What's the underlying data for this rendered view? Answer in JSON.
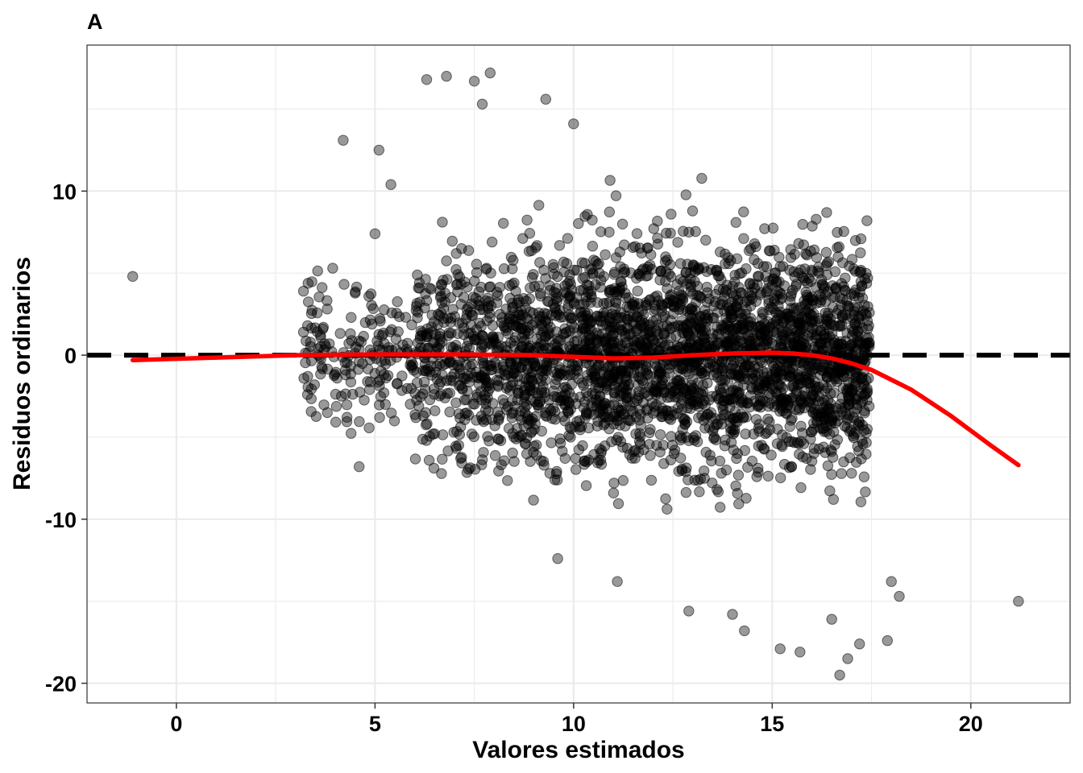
{
  "chart_data": {
    "type": "scatter",
    "tag": "A",
    "title": "",
    "xlabel": "Valores estimados",
    "ylabel": "Residuos ordinarios",
    "xlim": [
      -2.25,
      22.5
    ],
    "ylim": [
      -21.2,
      18.9
    ],
    "x_ticks": [
      0,
      5,
      10,
      15,
      20
    ],
    "x_tick_labels": [
      "0",
      "5",
      "10",
      "15",
      "20"
    ],
    "y_ticks": [
      -20,
      -10,
      0,
      10
    ],
    "y_tick_labels": [
      "-20",
      "-10",
      "0",
      "10"
    ],
    "grid": true,
    "legend": "none",
    "colors": {
      "points": "#000000",
      "point_opacity": 0.4,
      "smooth_line": "#ff0000",
      "reference_line": "#000000",
      "grid": "#ebebeb",
      "panel_border": "#333333"
    },
    "reference_line": {
      "y": 0,
      "style": "dashed"
    },
    "highlighted_points": [
      {
        "x": -1.1,
        "y": 4.8
      },
      {
        "x": 21.2,
        "y": -15.0
      },
      {
        "x": 17.9,
        "y": -17.4
      },
      {
        "x": 18.2,
        "y": -14.7
      },
      {
        "x": 18.0,
        "y": -13.8
      },
      {
        "x": 16.7,
        "y": -19.5
      },
      {
        "x": 16.9,
        "y": -18.5
      },
      {
        "x": 4.2,
        "y": 13.1
      },
      {
        "x": 3.2,
        "y": 3.9
      },
      {
        "x": 3.3,
        "y": -2.4
      },
      {
        "x": 3.2,
        "y": 1.4
      },
      {
        "x": 3.7,
        "y": 1.7
      },
      {
        "x": 3.8,
        "y": -3.5
      },
      {
        "x": 4.4,
        "y": 2.3
      },
      {
        "x": 4.6,
        "y": -6.8
      },
      {
        "x": 5.1,
        "y": 12.5
      },
      {
        "x": 5.0,
        "y": 7.4
      },
      {
        "x": 5.4,
        "y": 10.4
      },
      {
        "x": 6.3,
        "y": 16.8
      },
      {
        "x": 6.8,
        "y": 17.0
      },
      {
        "x": 7.5,
        "y": 16.7
      },
      {
        "x": 7.9,
        "y": 17.2
      },
      {
        "x": 7.7,
        "y": 15.3
      },
      {
        "x": 9.3,
        "y": 15.6
      },
      {
        "x": 10.0,
        "y": 14.1
      },
      {
        "x": 9.6,
        "y": -12.4
      },
      {
        "x": 11.1,
        "y": -13.8
      },
      {
        "x": 12.9,
        "y": -15.6
      },
      {
        "x": 14.3,
        "y": -16.8
      },
      {
        "x": 15.2,
        "y": -17.9
      },
      {
        "x": 15.7,
        "y": -18.1
      },
      {
        "x": 14.0,
        "y": -15.8
      },
      {
        "x": 16.5,
        "y": -16.1
      },
      {
        "x": 17.2,
        "y": -17.6
      }
    ],
    "cloud_description_bands": [
      {
        "x_range": [
          3.0,
          6.0
        ],
        "y_range": [
          -7.5,
          8.5
        ],
        "density": "sparse"
      },
      {
        "x_range": [
          6.0,
          8.0
        ],
        "y_range": [
          -10.5,
          14.5
        ],
        "density": "medium"
      },
      {
        "x_range": [
          8.0,
          17.5
        ],
        "y_range": [
          -16.0,
          13.5
        ],
        "density": "dense"
      }
    ],
    "smooth_line": {
      "x": [
        -1.1,
        1,
        3,
        5,
        7,
        9,
        10,
        11,
        12,
        13,
        14,
        15,
        15.5,
        16,
        16.5,
        17,
        17.5,
        18,
        18.5,
        19,
        19.5,
        20,
        20.5,
        21.2
      ],
      "y": [
        -0.3,
        -0.15,
        0.0,
        0.05,
        0.05,
        0.0,
        -0.1,
        -0.2,
        -0.15,
        0.0,
        0.1,
        0.15,
        0.1,
        0.0,
        -0.2,
        -0.5,
        -0.9,
        -1.5,
        -2.1,
        -2.9,
        -3.7,
        -4.6,
        -5.5,
        -6.7
      ]
    }
  }
}
